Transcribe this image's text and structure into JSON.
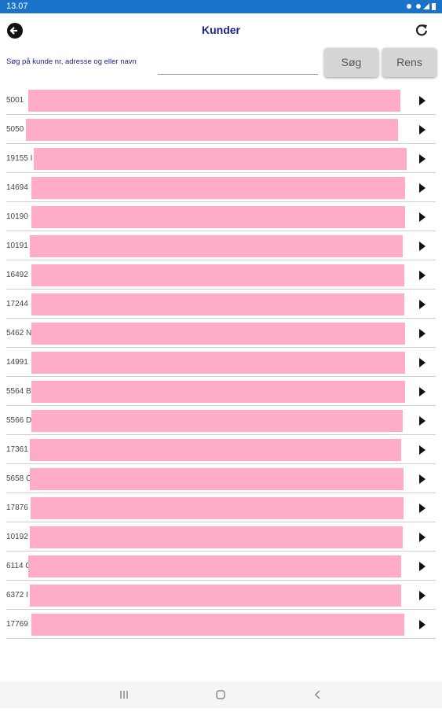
{
  "status_bar": {
    "time": "13.07"
  },
  "header": {
    "title": "Kunder"
  },
  "search": {
    "placeholder": "Søg på kunde nr, adresse og eller navn",
    "search_button": "Søg",
    "clear_button": "Rens"
  },
  "customers": [
    "5001",
    "5050",
    "19155 I",
    "14694",
    "10190",
    "10191",
    "16492",
    "17244",
    "5462 N",
    "14991",
    "5564 B",
    "5566 D",
    "17361",
    "5658 C",
    "17876",
    "10192",
    "6114 C",
    "6372 I",
    "17769"
  ]
}
